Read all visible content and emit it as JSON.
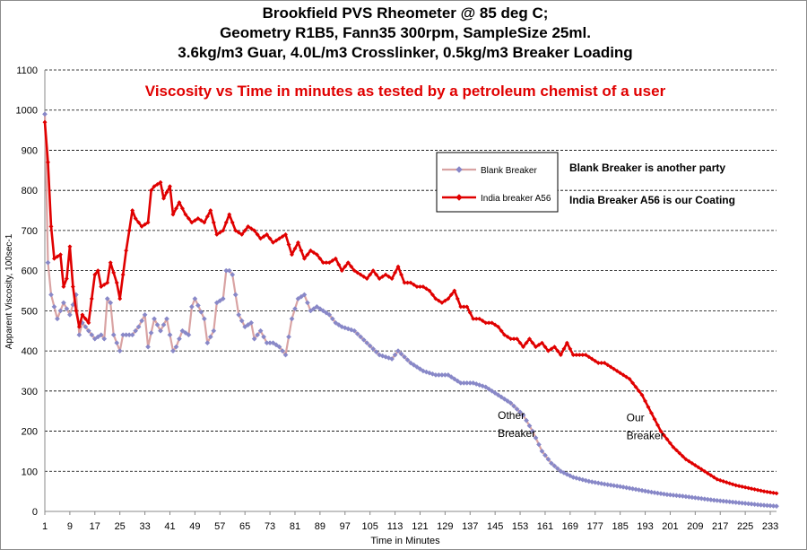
{
  "chart_data": {
    "type": "line",
    "title": [
      "Brookfield PVS Rheometer @ 85 deg C;",
      "Geometry R1B5, Fann35 300rpm, SampleSize 25ml.",
      "3.6kg/m3 Guar, 4.0L/m3 Crosslinker, 0.5kg/m3 Breaker Loading"
    ],
    "subtitle": "Viscosity vs Time in minutes as tested by a petroleum chemist of a user",
    "xlabel": "Time in Minutes",
    "ylabel": "Apparent Viscosity, 100sec-1",
    "ylim": [
      0,
      1100
    ],
    "yticks": [
      0,
      100,
      200,
      300,
      400,
      500,
      600,
      700,
      800,
      900,
      1000,
      1100
    ],
    "xlim": [
      1,
      235
    ],
    "xticks": [
      1,
      9,
      17,
      25,
      33,
      41,
      49,
      57,
      65,
      73,
      81,
      89,
      97,
      105,
      113,
      121,
      129,
      137,
      145,
      153,
      161,
      169,
      177,
      185,
      193,
      201,
      209,
      217,
      225,
      233
    ],
    "grid": "horizontal dashed",
    "legend_position": "upper-right",
    "series": [
      {
        "name": "Blank Breaker",
        "color": "#d9a3a3",
        "marker_color": "#8888c8",
        "marker": "diamond",
        "anchors": [
          [
            1,
            990
          ],
          [
            2,
            620
          ],
          [
            3,
            540
          ],
          [
            5,
            480
          ],
          [
            7,
            520
          ],
          [
            9,
            490
          ],
          [
            11,
            540
          ],
          [
            12,
            440
          ],
          [
            13,
            470
          ],
          [
            15,
            450
          ],
          [
            17,
            430
          ],
          [
            19,
            440
          ],
          [
            20,
            430
          ],
          [
            21,
            530
          ],
          [
            22,
            520
          ],
          [
            23,
            440
          ],
          [
            25,
            400
          ],
          [
            26,
            440
          ],
          [
            29,
            440
          ],
          [
            31,
            460
          ],
          [
            33,
            490
          ],
          [
            34,
            410
          ],
          [
            36,
            480
          ],
          [
            38,
            450
          ],
          [
            40,
            480
          ],
          [
            42,
            400
          ],
          [
            43,
            410
          ],
          [
            45,
            450
          ],
          [
            47,
            440
          ],
          [
            48,
            510
          ],
          [
            49,
            530
          ],
          [
            52,
            480
          ],
          [
            53,
            420
          ],
          [
            55,
            450
          ],
          [
            56,
            520
          ],
          [
            58,
            530
          ],
          [
            59,
            600
          ],
          [
            60,
            600
          ],
          [
            61,
            590
          ],
          [
            63,
            490
          ],
          [
            65,
            460
          ],
          [
            67,
            470
          ],
          [
            68,
            430
          ],
          [
            70,
            450
          ],
          [
            72,
            420
          ],
          [
            74,
            420
          ],
          [
            76,
            410
          ],
          [
            78,
            390
          ],
          [
            80,
            480
          ],
          [
            82,
            530
          ],
          [
            84,
            540
          ],
          [
            86,
            500
          ],
          [
            88,
            510
          ],
          [
            90,
            500
          ],
          [
            92,
            490
          ],
          [
            94,
            470
          ],
          [
            96,
            460
          ],
          [
            100,
            450
          ],
          [
            104,
            420
          ],
          [
            108,
            390
          ],
          [
            112,
            380
          ],
          [
            114,
            400
          ],
          [
            118,
            370
          ],
          [
            122,
            350
          ],
          [
            126,
            340
          ],
          [
            130,
            340
          ],
          [
            134,
            320
          ],
          [
            138,
            320
          ],
          [
            142,
            310
          ],
          [
            146,
            290
          ],
          [
            150,
            270
          ],
          [
            154,
            240
          ],
          [
            157,
            200
          ],
          [
            160,
            150
          ],
          [
            163,
            120
          ],
          [
            166,
            100
          ],
          [
            170,
            85
          ],
          [
            175,
            75
          ],
          [
            180,
            68
          ],
          [
            185,
            62
          ],
          [
            190,
            55
          ],
          [
            195,
            48
          ],
          [
            200,
            42
          ],
          [
            205,
            38
          ],
          [
            210,
            33
          ],
          [
            215,
            28
          ],
          [
            220,
            24
          ],
          [
            225,
            20
          ],
          [
            230,
            16
          ],
          [
            235,
            13
          ]
        ]
      },
      {
        "name": "India breaker A56",
        "color": "#e00000",
        "marker": "diamond",
        "anchors": [
          [
            1,
            970
          ],
          [
            2,
            870
          ],
          [
            3,
            710
          ],
          [
            4,
            630
          ],
          [
            6,
            640
          ],
          [
            7,
            560
          ],
          [
            8,
            580
          ],
          [
            9,
            660
          ],
          [
            10,
            560
          ],
          [
            11,
            500
          ],
          [
            12,
            460
          ],
          [
            13,
            490
          ],
          [
            15,
            470
          ],
          [
            17,
            590
          ],
          [
            18,
            600
          ],
          [
            19,
            560
          ],
          [
            21,
            570
          ],
          [
            22,
            620
          ],
          [
            24,
            570
          ],
          [
            25,
            530
          ],
          [
            27,
            650
          ],
          [
            29,
            750
          ],
          [
            30,
            730
          ],
          [
            32,
            710
          ],
          [
            34,
            720
          ],
          [
            35,
            800
          ],
          [
            36,
            810
          ],
          [
            38,
            820
          ],
          [
            39,
            780
          ],
          [
            41,
            810
          ],
          [
            42,
            740
          ],
          [
            44,
            770
          ],
          [
            46,
            740
          ],
          [
            48,
            720
          ],
          [
            50,
            730
          ],
          [
            52,
            720
          ],
          [
            54,
            750
          ],
          [
            56,
            690
          ],
          [
            58,
            700
          ],
          [
            60,
            740
          ],
          [
            62,
            700
          ],
          [
            64,
            690
          ],
          [
            66,
            710
          ],
          [
            68,
            700
          ],
          [
            70,
            680
          ],
          [
            72,
            690
          ],
          [
            74,
            670
          ],
          [
            76,
            680
          ],
          [
            78,
            690
          ],
          [
            80,
            640
          ],
          [
            82,
            670
          ],
          [
            84,
            630
          ],
          [
            86,
            650
          ],
          [
            88,
            640
          ],
          [
            90,
            620
          ],
          [
            92,
            620
          ],
          [
            94,
            630
          ],
          [
            96,
            600
          ],
          [
            98,
            620
          ],
          [
            100,
            600
          ],
          [
            102,
            590
          ],
          [
            104,
            580
          ],
          [
            106,
            600
          ],
          [
            108,
            580
          ],
          [
            110,
            590
          ],
          [
            112,
            580
          ],
          [
            114,
            610
          ],
          [
            116,
            570
          ],
          [
            118,
            570
          ],
          [
            120,
            560
          ],
          [
            122,
            560
          ],
          [
            124,
            550
          ],
          [
            126,
            530
          ],
          [
            128,
            520
          ],
          [
            130,
            530
          ],
          [
            132,
            550
          ],
          [
            134,
            510
          ],
          [
            136,
            510
          ],
          [
            138,
            480
          ],
          [
            140,
            480
          ],
          [
            142,
            470
          ],
          [
            144,
            470
          ],
          [
            146,
            460
          ],
          [
            148,
            440
          ],
          [
            150,
            430
          ],
          [
            152,
            430
          ],
          [
            154,
            410
          ],
          [
            156,
            430
          ],
          [
            158,
            410
          ],
          [
            160,
            420
          ],
          [
            162,
            400
          ],
          [
            164,
            410
          ],
          [
            166,
            390
          ],
          [
            168,
            420
          ],
          [
            170,
            390
          ],
          [
            172,
            390
          ],
          [
            174,
            390
          ],
          [
            176,
            380
          ],
          [
            178,
            370
          ],
          [
            180,
            370
          ],
          [
            182,
            360
          ],
          [
            184,
            350
          ],
          [
            186,
            340
          ],
          [
            188,
            330
          ],
          [
            190,
            310
          ],
          [
            192,
            290
          ],
          [
            194,
            260
          ],
          [
            196,
            230
          ],
          [
            198,
            200
          ],
          [
            200,
            180
          ],
          [
            202,
            160
          ],
          [
            204,
            145
          ],
          [
            206,
            130
          ],
          [
            208,
            120
          ],
          [
            210,
            110
          ],
          [
            212,
            100
          ],
          [
            214,
            90
          ],
          [
            216,
            80
          ],
          [
            218,
            75
          ],
          [
            220,
            70
          ],
          [
            222,
            65
          ],
          [
            225,
            60
          ],
          [
            228,
            55
          ],
          [
            231,
            50
          ],
          [
            235,
            45
          ]
        ]
      }
    ],
    "annotations": [
      {
        "text": [
          "Other",
          "Breaker"
        ],
        "x": 147,
        "y": 230
      },
      {
        "text": [
          "Our",
          "Breaker"
        ],
        "x": 187,
        "y": 225
      }
    ]
  },
  "notes": [
    "Blank Breaker is another party",
    "India Breaker A56 is our Coating"
  ]
}
